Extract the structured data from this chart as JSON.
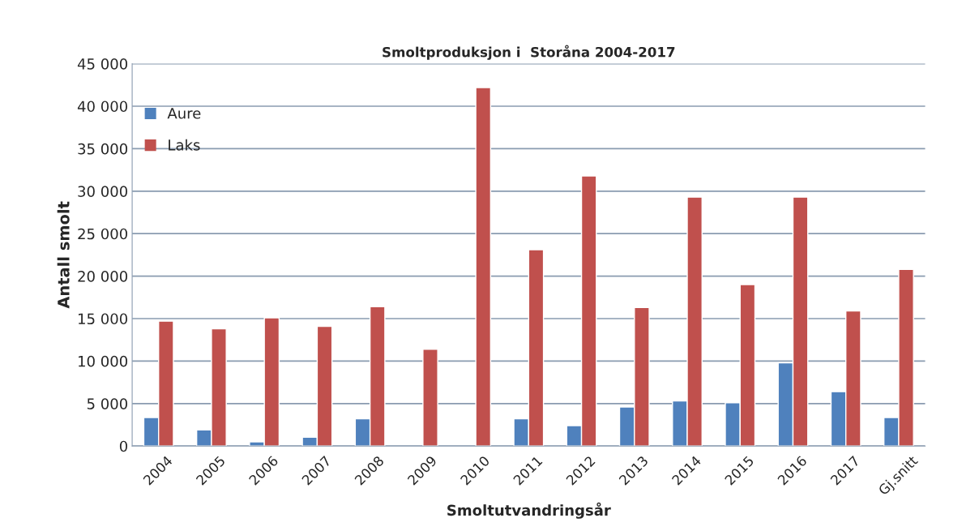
{
  "chart_data": {
    "type": "bar",
    "title": "Smoltproduksjon i  Storåna 2004-2017",
    "xlabel": "Smoltutvandringsår",
    "ylabel": "Antall smolt",
    "categories": [
      "2004",
      "2005",
      "2006",
      "2007",
      "2008",
      "2009",
      "2010",
      "2011",
      "2012",
      "2013",
      "2014",
      "2015",
      "2016",
      "2017",
      "Gj.snitt"
    ],
    "series": [
      {
        "name": "Aure",
        "color": "#4f81bd",
        "values": [
          3350,
          1900,
          500,
          1050,
          3200,
          null,
          null,
          3200,
          2400,
          4600,
          5300,
          5100,
          9800,
          6400,
          3350
        ]
      },
      {
        "name": "Laks",
        "color": "#c0504d",
        "values": [
          14700,
          13800,
          15100,
          14100,
          16400,
          11400,
          42200,
          23100,
          31800,
          16300,
          29300,
          19000,
          29300,
          15900,
          20800
        ]
      }
    ],
    "ylim": [
      0,
      45000
    ],
    "yticks": [
      0,
      {
        "value": 5000,
        "label": "5 000"
      },
      {
        "value": 10000,
        "label": "10 000"
      },
      {
        "value": 15000,
        "label": "15 000"
      },
      {
        "value": 20000,
        "label": "20 000"
      },
      {
        "value": 25000,
        "label": "25 000"
      },
      {
        "value": 30000,
        "label": "30 000"
      },
      {
        "value": 35000,
        "label": "35 000"
      },
      {
        "value": 40000,
        "label": "40 000"
      },
      {
        "value": 45000,
        "label": "45 000"
      }
    ],
    "grid": "y",
    "legend": "top left"
  }
}
